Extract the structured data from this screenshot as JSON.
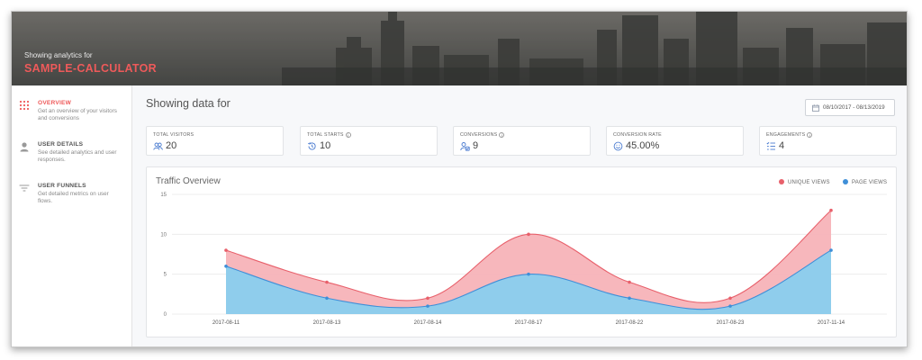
{
  "header": {
    "subtitle": "Showing analytics for",
    "title": "SAMPLE-CALCULATOR"
  },
  "sidebar": {
    "items": [
      {
        "label": "OVERVIEW",
        "desc": "Get an overview of your visitors and conversions",
        "icon": "grid-icon",
        "active": true
      },
      {
        "label": "USER DETAILS",
        "desc": "See detailed analytics and user responses.",
        "icon": "user-icon",
        "active": false
      },
      {
        "label": "USER FUNNELS",
        "desc": "Get detailed metrics on user flows.",
        "icon": "funnel-icon",
        "active": false
      }
    ]
  },
  "main": {
    "title": "Showing data for",
    "date_range": "08/10/2017 - 08/13/2019"
  },
  "stats": [
    {
      "label": "TOTAL VISITORS",
      "value": "20",
      "icon": "users-icon",
      "info": false
    },
    {
      "label": "TOTAL STARTS",
      "value": "10",
      "icon": "history-icon",
      "info": true
    },
    {
      "label": "CONVERSIONS",
      "value": "9",
      "icon": "user-check-icon",
      "info": true
    },
    {
      "label": "CONVERSION RATE",
      "value": "45.00%",
      "icon": "smile-icon",
      "info": false
    },
    {
      "label": "ENGAGEMENTS",
      "value": "4",
      "icon": "list-icon",
      "info": true
    }
  ],
  "colors": {
    "accent": "#ee5a5a",
    "unique_line": "#e8606b",
    "unique_fill": "#f7b3b8",
    "page_line": "#3f8fd8",
    "page_fill": "#8fcdec",
    "icon_blue": "#4a7bd0"
  },
  "chart_data": {
    "type": "area",
    "title": "Traffic Overview",
    "categories": [
      "2017-08-11",
      "2017-08-13",
      "2017-08-14",
      "2017-08-17",
      "2017-08-22",
      "2017-08-23",
      "2017-11-14"
    ],
    "series": [
      {
        "name": "UNIQUE VIEWS",
        "values": [
          8,
          4,
          2,
          10,
          4,
          2,
          13
        ]
      },
      {
        "name": "PAGE VIEWS",
        "values": [
          6,
          2,
          1,
          5,
          2,
          1,
          8
        ]
      }
    ],
    "ylim": [
      0,
      15
    ],
    "yticks": [
      "0",
      "5",
      "10",
      "15"
    ],
    "legend_position": "top-right",
    "grid": true
  }
}
